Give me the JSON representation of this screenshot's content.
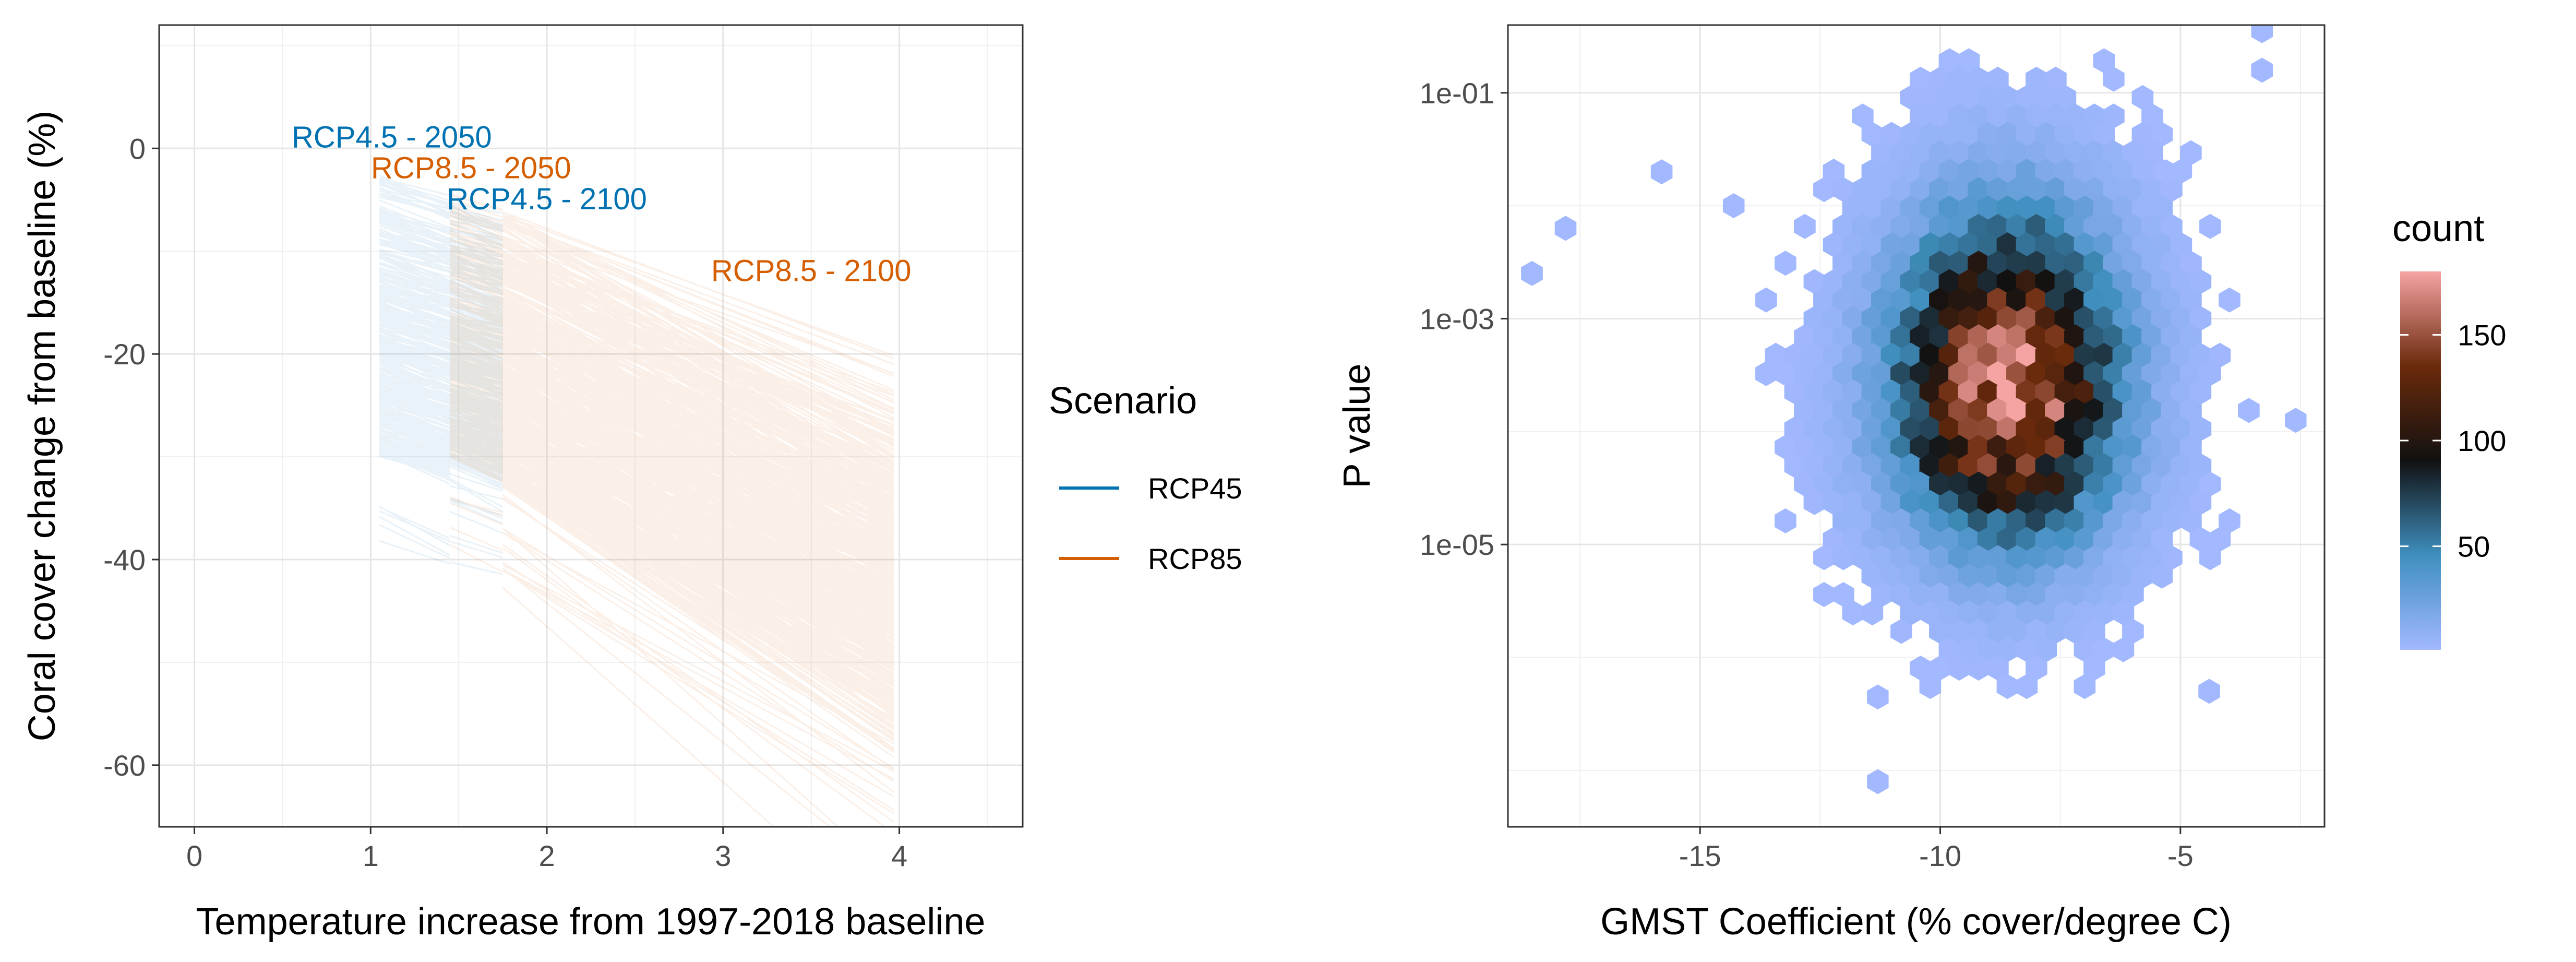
{
  "chart_data": [
    {
      "type": "line",
      "xlabel": "Temperature increase from 1997-2018 baseline",
      "ylabel": "Coral cover change from baseline (%)",
      "xlim": [
        -0.2,
        4.7
      ],
      "ylim": [
        -66,
        12
      ],
      "x_ticks": [
        0,
        1,
        2,
        3,
        4
      ],
      "y_ticks": [
        0,
        -20,
        -40,
        -60
      ],
      "x_tick_labels": [
        "0",
        "1",
        "2",
        "3",
        "4"
      ],
      "y_tick_labels": [
        "0",
        "-20",
        "-40",
        "-60"
      ],
      "grid": true,
      "legend": {
        "title": "Scenario",
        "position": "right",
        "entries": [
          {
            "label": "RCP45",
            "color": "#0072B2"
          },
          {
            "label": "RCP85",
            "color": "#D55E00"
          }
        ]
      },
      "series": [
        {
          "name": "RCP45",
          "color": "#0072B2",
          "segments": [
            {
              "x_range": [
                1.05,
                1.45
              ],
              "y_at_start_range": [
                -30,
                -2
              ],
              "slope_range": [
                -8,
                -3
              ]
            },
            {
              "x_range": [
                1.45,
                1.75
              ],
              "y_at_start_range": [
                -31,
                -5
              ],
              "slope_range": [
                -8,
                -3
              ]
            }
          ]
        },
        {
          "name": "RCP85",
          "color": "#D55E00",
          "segments": [
            {
              "x_range": [
                1.45,
                1.75
              ],
              "y_at_start_range": [
                -30,
                -4
              ],
              "slope_range": [
                -9,
                -3
              ]
            },
            {
              "x_range": [
                1.75,
                3.97
              ],
              "y_at_start_range": [
                -33,
                -6
              ],
              "slope_range": [
                -12,
                -6
              ]
            }
          ]
        }
      ],
      "annotations": [
        {
          "text": "RCP4.5 - 2050",
          "x": 1.12,
          "y": 1,
          "color": "#0072B2"
        },
        {
          "text": "RCP8.5 - 2050",
          "x": 1.57,
          "y": -2,
          "color": "#D55E00"
        },
        {
          "text": "RCP4.5 - 2100",
          "x": 2.0,
          "y": -5,
          "color": "#0072B2"
        },
        {
          "text": "RCP8.5 - 2100",
          "x": 3.5,
          "y": -12,
          "color": "#D55E00"
        }
      ]
    },
    {
      "type": "heatmap",
      "subtype": "hexbin",
      "xlabel": "GMST Coefficient (% cover/degree C)",
      "ylabel": "P value",
      "xlim": [
        -19,
        -2
      ],
      "ylim_log10": [
        -7.5,
        -0.4
      ],
      "x_ticks": [
        -15,
        -10,
        -5
      ],
      "x_tick_labels": [
        "-15",
        "-10",
        "-5"
      ],
      "y_ticks_log10": [
        -1,
        -3,
        -5
      ],
      "y_tick_labels": [
        "1e-01",
        "1e-03",
        "1e-05"
      ],
      "y_scale": "log",
      "grid": true,
      "colorbar": {
        "title": "count",
        "ticks": [
          50,
          100,
          150
        ],
        "tick_labels": [
          "50",
          "100",
          "150"
        ],
        "range": [
          1,
          180
        ],
        "colors": [
          "#a2b8ff",
          "#3f8fbf",
          "#111111",
          "#6b2a0c",
          "#f5a3a3"
        ]
      },
      "density_peak": {
        "x": -8.6,
        "log10_p": -3.65,
        "count": 180
      },
      "density_spread": {
        "x_sd": 1.7,
        "log10_p_sd": 0.75
      }
    }
  ]
}
